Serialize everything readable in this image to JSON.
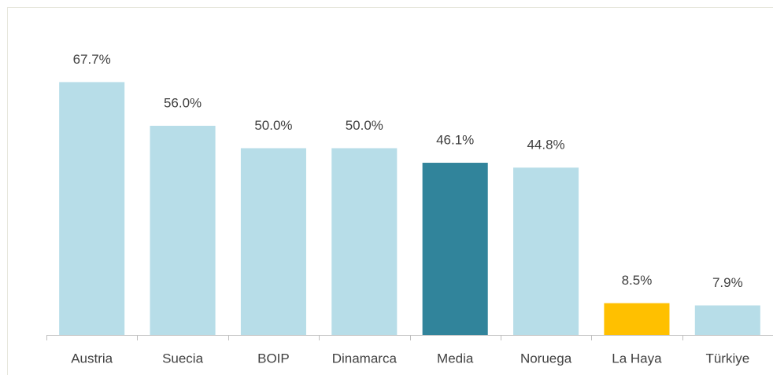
{
  "chart_data": {
    "type": "bar",
    "categories": [
      "Austria",
      "Suecia",
      "BOIP",
      "Dinamarca",
      "Media",
      "Noruega",
      "La Haya",
      "Türkiye"
    ],
    "values": [
      67.7,
      56.0,
      50.0,
      50.0,
      46.1,
      44.8,
      8.5,
      7.9
    ],
    "value_labels": [
      "67.7%",
      "56.0%",
      "50.0%",
      "50.0%",
      "46.1%",
      "44.8%",
      "8.5%",
      "7.9%"
    ],
    "colors": [
      "#b7dde8",
      "#b7dde8",
      "#b7dde8",
      "#b7dde8",
      "#31849b",
      "#b7dde8",
      "#ffc000",
      "#b7dde8"
    ],
    "ylim": [
      0,
      80
    ]
  }
}
